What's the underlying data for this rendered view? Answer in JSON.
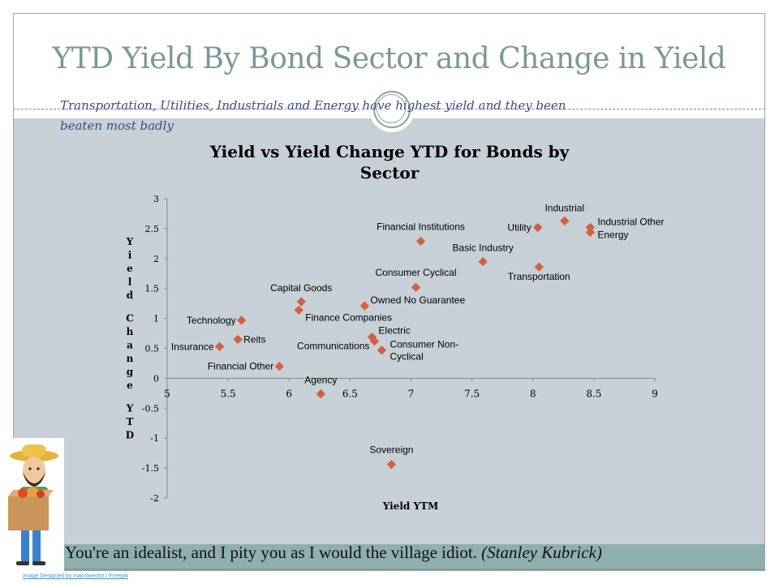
{
  "slide": {
    "title": "YTD Yield By Bond Sector and Change in Yield",
    "subtitle": "Transportation, Utilities, Industrials and Energy have highest yield and they been beaten most badly",
    "quote_text": "You're an idealist, and I pity you as I would the village idiot.",
    "quote_author": "(Stanley Kubrick)",
    "image_credit": "Image Designed by macrovector / Freepik"
  },
  "chart_data": {
    "type": "scatter",
    "title": "Yield vs Yield Change YTD for Bonds by Sector",
    "xlabel": "Yield YTM",
    "ylabel": "Yield Change YTD",
    "xlim": [
      5,
      9
    ],
    "ylim": [
      -2,
      3
    ],
    "xticks": [
      "5",
      "5.5",
      "6",
      "6.5",
      "7",
      "7.5",
      "8",
      "8.5",
      "9"
    ],
    "yticks": [
      "-2",
      "-1.5",
      "-1",
      "-0.5",
      "0",
      "0.5",
      "1",
      "1.5",
      "2",
      "2.5",
      "3"
    ],
    "grid": false,
    "marker_color": "#d4603e",
    "points": [
      {
        "label": "Insurance",
        "x": 5.43,
        "y": 0.53
      },
      {
        "label": "Reits",
        "x": 5.58,
        "y": 0.65
      },
      {
        "label": "Technology",
        "x": 5.61,
        "y": 0.97
      },
      {
        "label": "Financial Other",
        "x": 5.92,
        "y": 0.2
      },
      {
        "label": "Capital Goods",
        "x": 6.1,
        "y": 1.28
      },
      {
        "label": "Finance Companies",
        "x": 6.08,
        "y": 1.14
      },
      {
        "label": "Agency",
        "x": 6.26,
        "y": -0.26
      },
      {
        "label": "Owned No Guarantee",
        "x": 6.62,
        "y": 1.21
      },
      {
        "label": "Electric",
        "x": 6.68,
        "y": 0.69
      },
      {
        "label": "Communications",
        "x": 6.7,
        "y": 0.62
      },
      {
        "label": "Consumer Non-Cyclical",
        "x": 6.76,
        "y": 0.47
      },
      {
        "label": "Consumer Cyclical",
        "x": 7.04,
        "y": 1.52
      },
      {
        "label": "Financial Institutions",
        "x": 7.08,
        "y": 2.29
      },
      {
        "label": "Basic Industry",
        "x": 7.59,
        "y": 1.95
      },
      {
        "label": "Utility",
        "x": 8.04,
        "y": 2.52
      },
      {
        "label": "Industrial",
        "x": 8.26,
        "y": 2.63
      },
      {
        "label": "Industrial Other",
        "x": 8.47,
        "y": 2.52
      },
      {
        "label": "Energy",
        "x": 8.47,
        "y": 2.44
      },
      {
        "label": "Transportation",
        "x": 8.05,
        "y": 1.86
      },
      {
        "label": "Sovereign",
        "x": 6.84,
        "y": -1.44
      }
    ]
  }
}
